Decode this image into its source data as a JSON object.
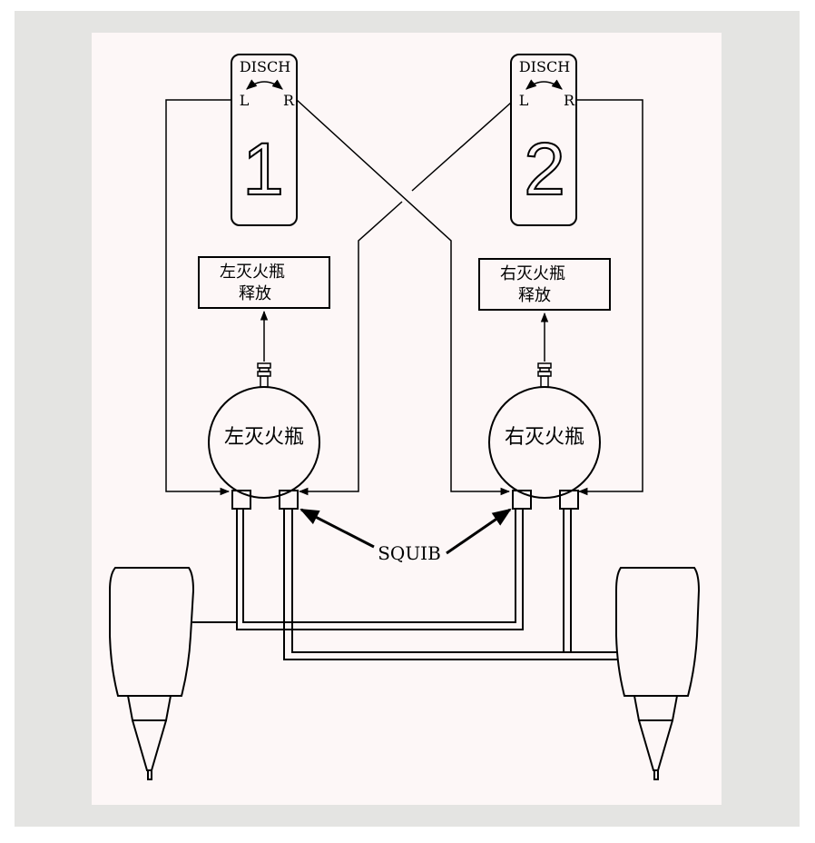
{
  "switches": [
    {
      "id": "1",
      "label": "DISCH",
      "left": "L",
      "right": "R",
      "number": "1"
    },
    {
      "id": "2",
      "label": "DISCH",
      "left": "L",
      "right": "R",
      "number": "2"
    }
  ],
  "release_boxes": [
    {
      "line1": "左灭火瓶",
      "line2": "释放"
    },
    {
      "line1": "右灭火瓶",
      "line2": "释放"
    }
  ],
  "bottles": [
    {
      "label": "左灭火瓶"
    },
    {
      "label": "右灭火瓶"
    }
  ],
  "squib_label": "SQUIB"
}
